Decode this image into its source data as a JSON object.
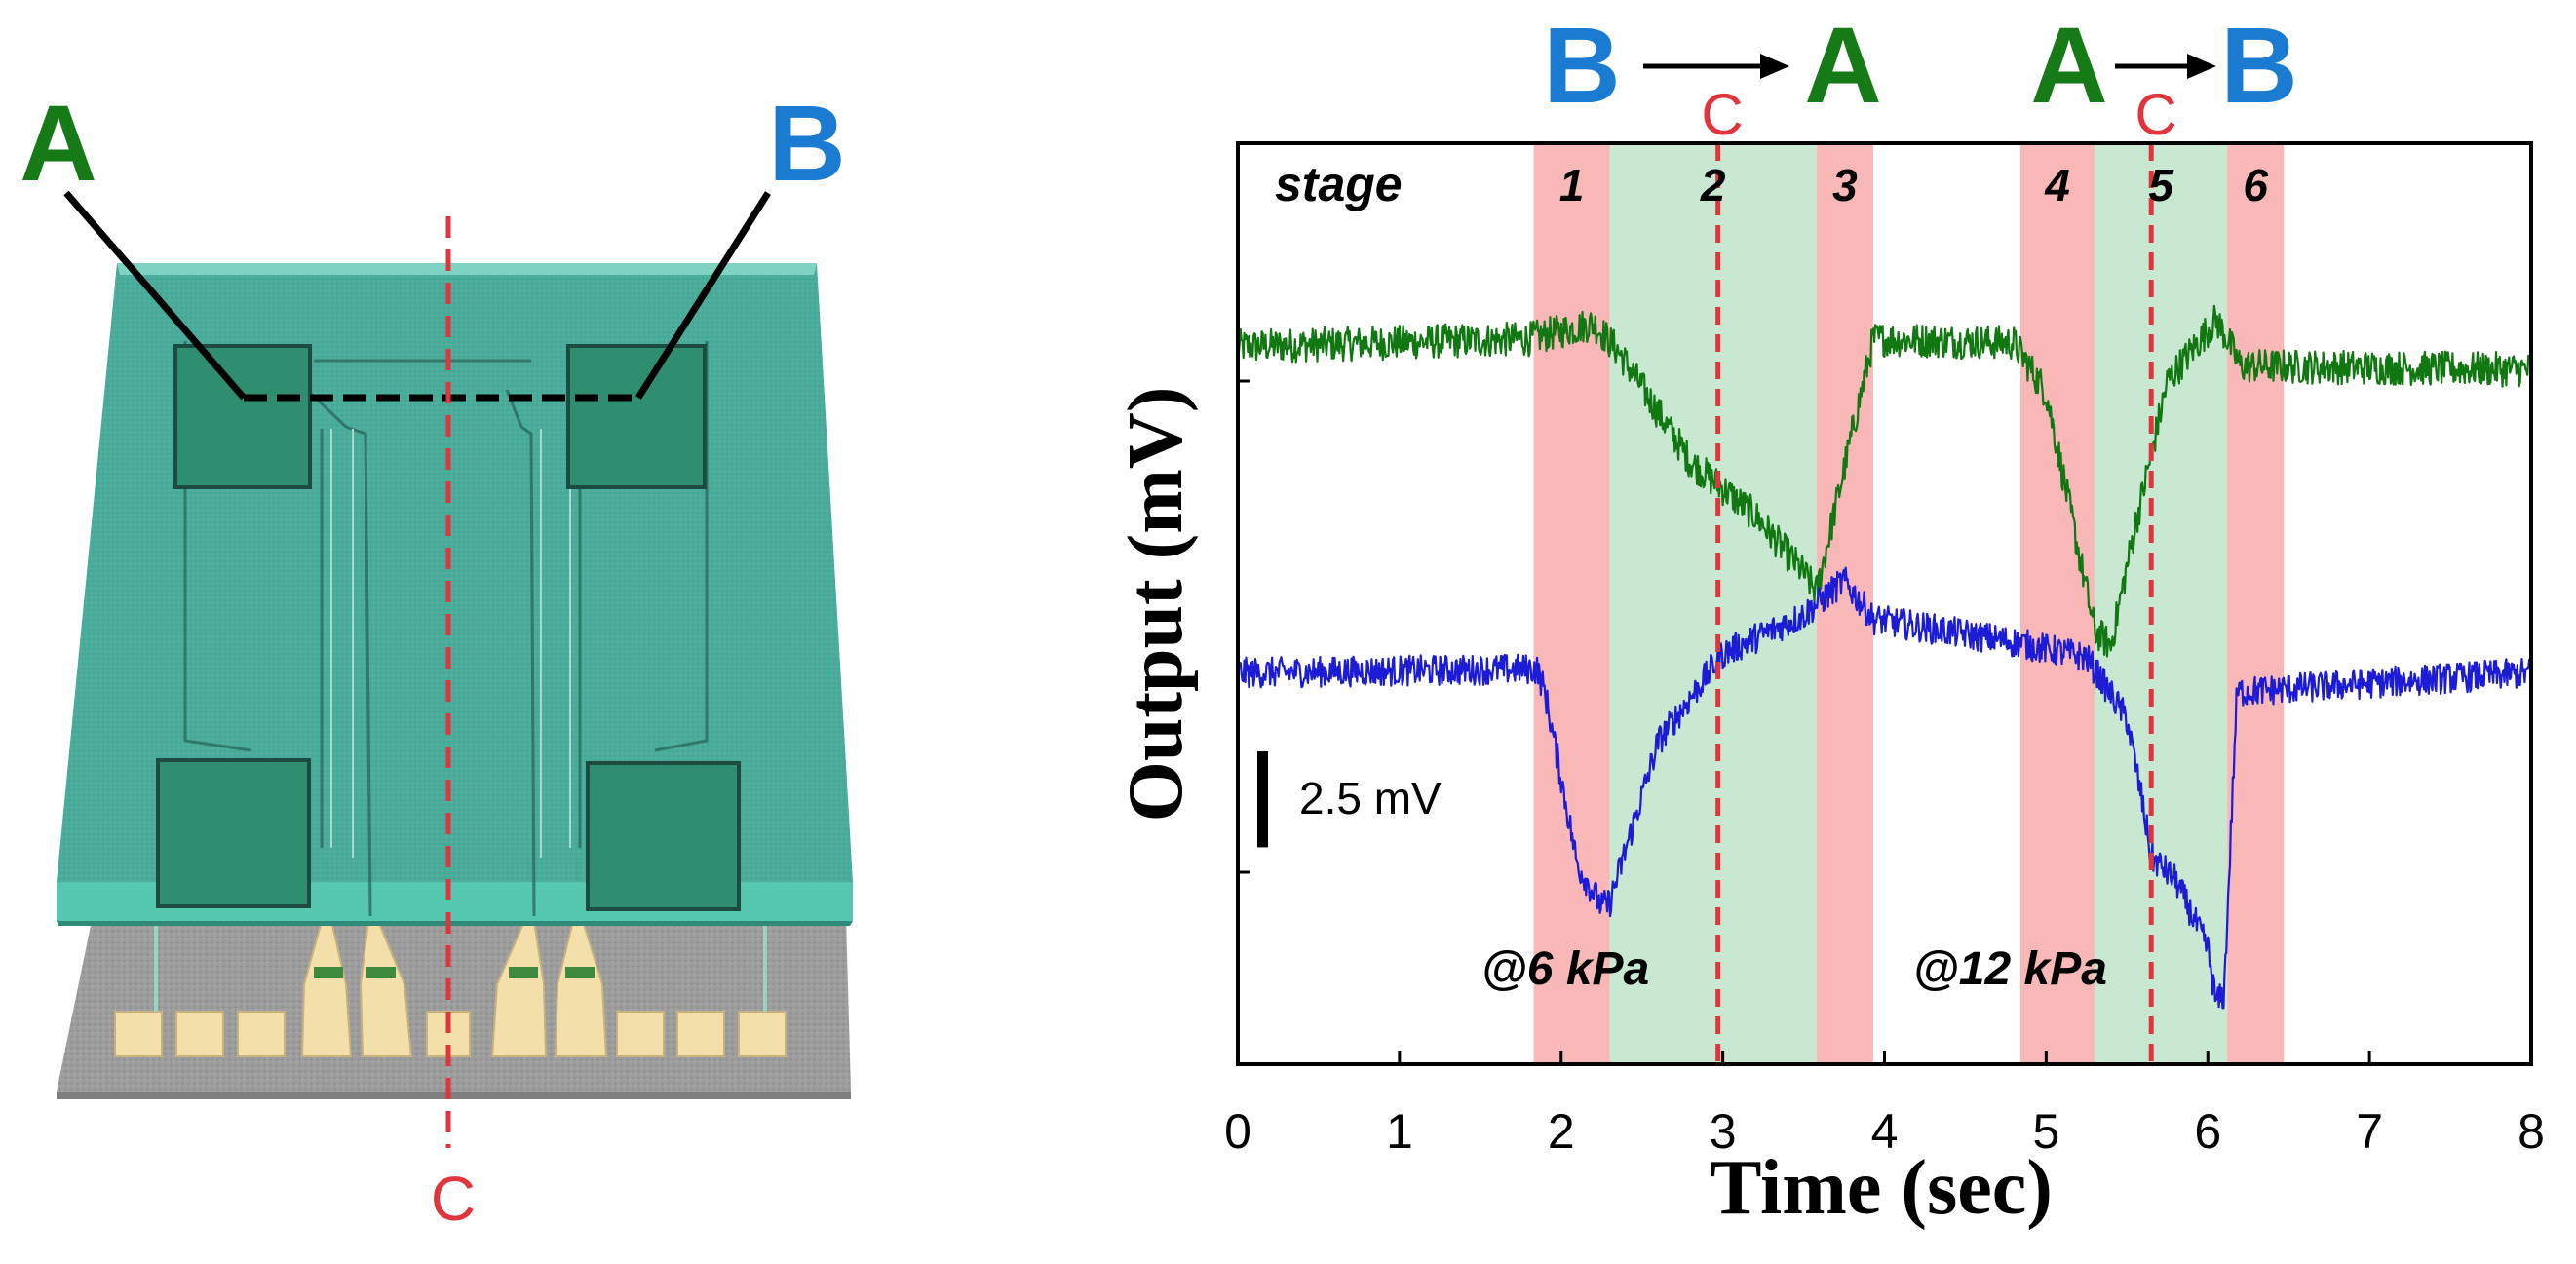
{
  "device": {
    "label_a": "A",
    "label_b": "B",
    "label_c": "C",
    "colors": {
      "a": "#167a16",
      "b": "#1b7bd1",
      "c": "#e0353c",
      "glass": "#4fc2aa"
    }
  },
  "header": {
    "left_from": "B",
    "left_mid": "C",
    "left_to": "A",
    "right_from": "A",
    "right_mid": "C",
    "right_to": "B"
  },
  "chart_data": {
    "type": "line",
    "xlabel": "Time (sec)",
    "ylabel": "Output (mV)",
    "xlim": [
      0,
      8
    ],
    "ylim": [
      -12,
      12
    ],
    "xticks": [
      "0",
      "1",
      "2",
      "3",
      "4",
      "5",
      "6",
      "7",
      "8"
    ],
    "stage_label": "stage",
    "stages": [
      {
        "label": "1",
        "start": 1.83,
        "end": 2.3,
        "color": "#f9b8b8"
      },
      {
        "label": "2",
        "start": 2.3,
        "end": 3.58,
        "color": "#c8e8d2"
      },
      {
        "label": "3",
        "start": 3.58,
        "end": 3.93,
        "color": "#f9b8b8"
      },
      {
        "label": "4",
        "start": 4.84,
        "end": 5.3,
        "color": "#f9b8b8"
      },
      {
        "label": "5",
        "start": 5.3,
        "end": 6.12,
        "color": "#c8e8d2"
      },
      {
        "label": "6",
        "start": 6.12,
        "end": 6.47,
        "color": "#f9b8b8"
      }
    ],
    "c_lines": [
      2.97,
      5.65
    ],
    "annotations": [
      "@6 kPa",
      "@12 kPa"
    ],
    "scale_bar_label": "2.5 mV",
    "scale_bar_mv": 2.5,
    "series": [
      {
        "name": "A",
        "color": "#117711",
        "noise": 0.45,
        "points": [
          [
            0,
            6.7
          ],
          [
            1.8,
            6.9
          ],
          [
            2.2,
            7.3
          ],
          [
            2.35,
            6.6
          ],
          [
            2.8,
            3.7
          ],
          [
            3.2,
            2.3
          ],
          [
            3.5,
            0.8
          ],
          [
            3.58,
            0.3
          ],
          [
            3.93,
            6.9
          ],
          [
            4.8,
            6.8
          ],
          [
            5.0,
            5.5
          ],
          [
            5.3,
            -0.7
          ],
          [
            5.4,
            -1.1
          ],
          [
            5.55,
            2.0
          ],
          [
            5.75,
            5.8
          ],
          [
            6.05,
            7.4
          ],
          [
            6.12,
            6.9
          ],
          [
            6.2,
            6.2
          ],
          [
            8,
            6.1
          ]
        ]
      },
      {
        "name": "B",
        "color": "#1c1cd6",
        "noise": 0.4,
        "points": [
          [
            0,
            -1.8
          ],
          [
            1.85,
            -1.7
          ],
          [
            1.9,
            -2.3
          ],
          [
            2.1,
            -6.8
          ],
          [
            2.25,
            -7.9
          ],
          [
            2.3,
            -7.8
          ],
          [
            2.6,
            -3.6
          ],
          [
            3.0,
            -1.3
          ],
          [
            3.5,
            -0.3
          ],
          [
            3.75,
            0.6
          ],
          [
            3.93,
            -0.4
          ],
          [
            4.8,
            -1.0
          ],
          [
            5.25,
            -1.4
          ],
          [
            5.5,
            -3.0
          ],
          [
            5.6,
            -5.3
          ],
          [
            5.65,
            -6.6
          ],
          [
            5.8,
            -7.2
          ],
          [
            6.0,
            -9.0
          ],
          [
            6.05,
            -10.4
          ],
          [
            6.1,
            -10.2
          ],
          [
            6.18,
            -2.3
          ],
          [
            8,
            -1.8
          ]
        ]
      }
    ]
  }
}
